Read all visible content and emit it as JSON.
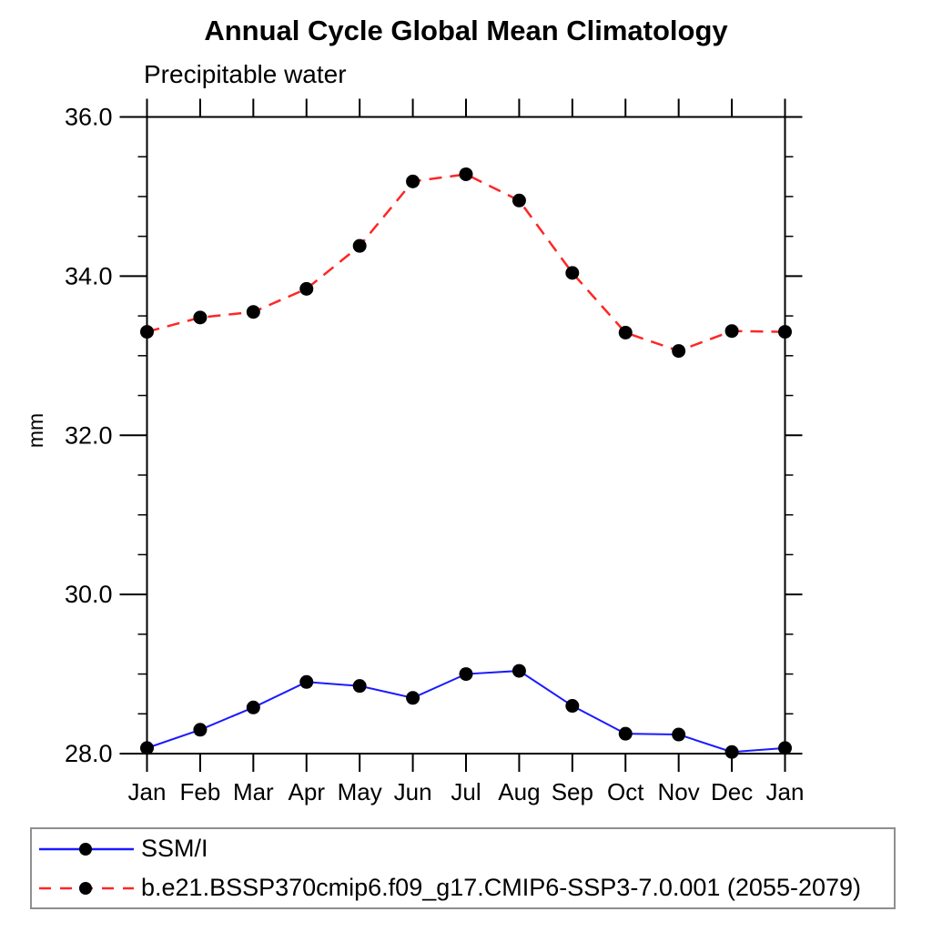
{
  "chart": {
    "title": "Annual Cycle Global Mean Climatology",
    "subtitle": "Precipitable water",
    "ylabel": "mm"
  },
  "chart_data": {
    "type": "line",
    "title": "Annual Cycle Global Mean Climatology",
    "subtitle": "Precipitable water",
    "xlabel": "",
    "ylabel": "mm",
    "categories": [
      "Jan",
      "Feb",
      "Mar",
      "Apr",
      "May",
      "Jun",
      "Jul",
      "Aug",
      "Sep",
      "Oct",
      "Nov",
      "Dec",
      "Jan"
    ],
    "ylim": [
      28.0,
      36.0
    ],
    "ytick_major": [
      28.0,
      30.0,
      32.0,
      34.0,
      36.0
    ],
    "ytick_labels": [
      "28.0",
      "30.0",
      "32.0",
      "34.0",
      "36.0"
    ],
    "ytick_minor_step": 0.5,
    "grid": false,
    "legend_position": "bottom",
    "marker": {
      "shape": "filled-circle",
      "color": "#000000"
    },
    "axis_color": "#000000",
    "series": [
      {
        "name": "SSM/I",
        "color": "#1a1aff",
        "line_style": "solid",
        "values": [
          28.07,
          28.3,
          28.58,
          28.9,
          28.85,
          28.7,
          29.0,
          29.04,
          28.6,
          28.25,
          28.24,
          28.02,
          28.07
        ]
      },
      {
        "name": "b.e21.BSSP370cmip6.f09_g17.CMIP6-SSP3-7.0.001 (2055-2079)",
        "color": "#ff2626",
        "line_style": "dashed",
        "values": [
          33.3,
          33.48,
          33.55,
          33.84,
          34.38,
          35.19,
          35.28,
          34.95,
          34.04,
          33.29,
          33.06,
          33.31,
          33.3
        ]
      }
    ]
  }
}
